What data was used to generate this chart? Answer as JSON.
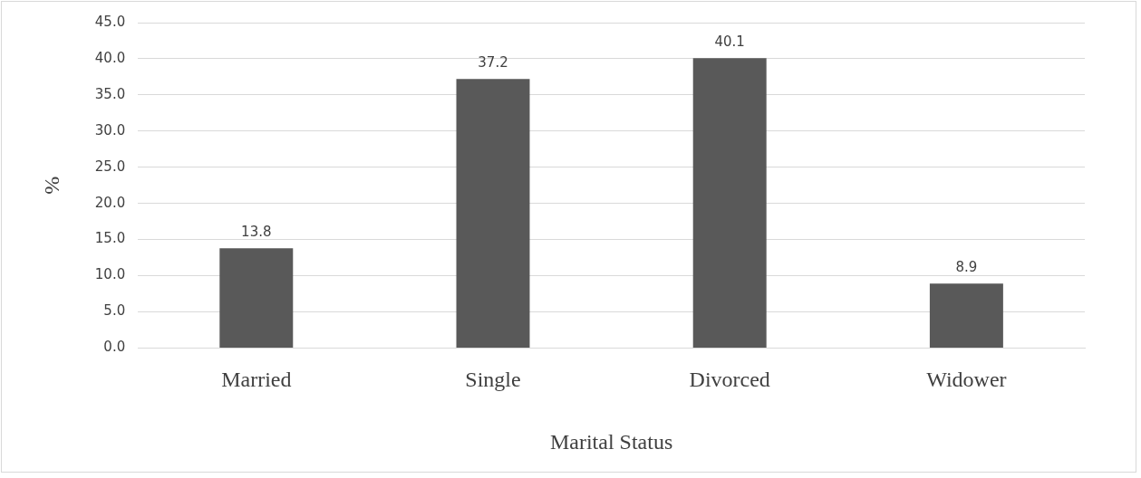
{
  "chart_data": {
    "type": "bar",
    "xlabel": "Marital Status",
    "ylabel": "%",
    "categories": [
      "Married",
      "Single",
      "Divorced",
      "Widower"
    ],
    "values": [
      13.8,
      37.2,
      40.1,
      8.9
    ],
    "color": "#595959",
    "ylim": [
      0,
      45
    ],
    "yticks": [
      {
        "value": 0,
        "label": "0.0"
      },
      {
        "value": 5,
        "label": "5.0"
      },
      {
        "value": 10,
        "label": "10.0"
      },
      {
        "value": 15,
        "label": "15.0"
      },
      {
        "value": 20,
        "label": "20.0"
      },
      {
        "value": 25,
        "label": "25.0"
      },
      {
        "value": 30,
        "label": "30.0"
      },
      {
        "value": 35,
        "label": "35.0"
      },
      {
        "value": 40,
        "label": "40.0"
      },
      {
        "value": 45,
        "label": "45.0"
      }
    ],
    "grid": "y",
    "legend": false,
    "data_labels": true
  }
}
